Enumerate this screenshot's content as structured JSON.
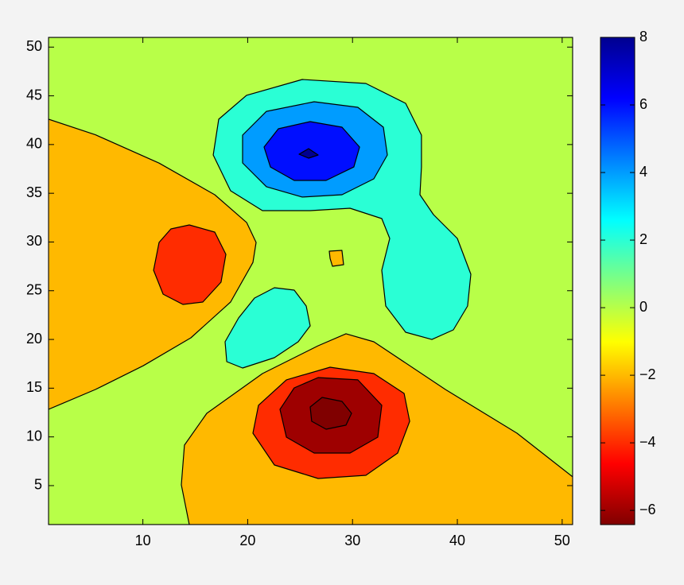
{
  "chart_data": {
    "type": "contourf",
    "xlim": [
      1,
      51
    ],
    "ylim": [
      1,
      51
    ],
    "xticks": [
      10,
      20,
      30,
      40,
      50
    ],
    "yticks": [
      5,
      10,
      15,
      20,
      25,
      30,
      35,
      40,
      45,
      50
    ],
    "colormap": [
      "#00008f",
      "#0000ff",
      "#0080ff",
      "#00ffff",
      "#80ff80",
      "#ffff00",
      "#ff8000",
      "#ff0000",
      "#800000"
    ],
    "clim": [
      -6.42,
      8
    ],
    "cticks": [
      {
        "value": -6,
        "label": "−6"
      },
      {
        "value": -4,
        "label": "−4"
      },
      {
        "value": -2,
        "label": "−2"
      },
      0,
      2,
      4,
      6,
      8
    ],
    "regions": [
      {
        "level": 0,
        "x": [
          1,
          51,
          51,
          1
        ],
        "y": [
          1,
          1,
          51,
          51
        ]
      },
      {
        "level": -2,
        "x": [
          1,
          5.48,
          11.55,
          16.86,
          19.9,
          20.8,
          20.5,
          18.37,
          14.58,
          10.03,
          5.48,
          1
        ],
        "y": [
          42.6,
          41.0,
          38.1,
          34.85,
          32.0,
          29.96,
          27.9,
          23.84,
          20.17,
          17.3,
          14.87,
          12.83
        ]
      },
      {
        "level": -4,
        "x": [
          14.43,
          16.86,
          17.92,
          17.46,
          15.72,
          13.82,
          11.93,
          11.02,
          11.55,
          12.68
        ],
        "y": [
          31.75,
          31.02,
          28.73,
          25.88,
          23.84,
          23.59,
          24.65,
          27.1,
          29.96,
          31.34
        ]
      },
      {
        "level": -2,
        "x": [
          14.43,
          13.67,
          13.97,
          16.1,
          21.41,
          26.72,
          29.38,
          32.03,
          38.86,
          45.69,
          51,
          51
        ],
        "y": [
          1,
          5.08,
          9.16,
          12.42,
          16.5,
          19.35,
          20.58,
          19.76,
          14.87,
          10.38,
          5.9,
          1
        ]
      },
      {
        "level": -4,
        "x": [
          27.86,
          32.03,
          34.92,
          35.45,
          34.31,
          31.27,
          26.72,
          22.55,
          20.5,
          21.03,
          23.69
        ],
        "y": [
          17.15,
          16.5,
          14.46,
          11.6,
          8.34,
          6.06,
          5.73,
          7.12,
          10.38,
          13.24,
          15.85
        ]
      },
      {
        "level": -6,
        "x": [
          26.72,
          30.51,
          32.79,
          32.41,
          29.76,
          26.34,
          23.69,
          23.08,
          24.44
        ],
        "y": [
          16.09,
          15.85,
          13.24,
          9.97,
          8.34,
          8.34,
          9.97,
          12.83,
          15.03
        ]
      },
      {
        "level": -6.42,
        "x": [
          27.1,
          29.0,
          29.91,
          29.38,
          27.48,
          26.11,
          25.96
        ],
        "y": [
          14.05,
          13.64,
          12.42,
          11.2,
          10.79,
          11.6,
          13.07
        ]
      },
      {
        "level": -2,
        "x": [
          27.78,
          28.99,
          29.15,
          28.09,
          27.86
        ],
        "y": [
          29.06,
          29.14,
          27.67,
          27.51,
          28.32
        ]
      },
      {
        "level": 2,
        "x": [
          22.55,
          24.44,
          25.58,
          25.96,
          24.82,
          22.55,
          19.51,
          18.0,
          17.84,
          19.13,
          20.65
        ],
        "y": [
          25.31,
          25.06,
          23.43,
          21.39,
          19.76,
          18.13,
          17.07,
          17.72,
          19.76,
          22.21,
          24.25
        ]
      },
      {
        "level": 2,
        "x": [
          25.2,
          31.27,
          35.07,
          36.58,
          36.58,
          36.43,
          37.72,
          40.0,
          41.29,
          40.98,
          39.62,
          37.57,
          35.07,
          33.17,
          32.79,
          33.55,
          32.79,
          29.76,
          25.96,
          21.41,
          18.37,
          16.71,
          17.24,
          19.89
        ],
        "y": [
          46.68,
          46.27,
          44.23,
          40.97,
          37.7,
          34.85,
          32.81,
          30.36,
          26.69,
          23.43,
          20.98,
          20.0,
          20.74,
          23.43,
          27.1,
          30.36,
          32.4,
          33.46,
          33.22,
          33.22,
          35.26,
          38.93,
          42.6,
          45.05
        ]
      },
      {
        "level": 4,
        "x": [
          26.34,
          30.51,
          32.94,
          33.32,
          32.03,
          29.0,
          25.2,
          21.79,
          19.51,
          19.51,
          21.79
        ],
        "y": [
          44.39,
          43.82,
          41.78,
          38.93,
          36.48,
          34.85,
          34.61,
          35.67,
          38.11,
          40.97,
          43.41
        ]
      },
      {
        "level": 6,
        "x": [
          25.96,
          29.0,
          30.67,
          30.13,
          27.48,
          24.44,
          22.17,
          21.56,
          22.93
        ],
        "y": [
          42.35,
          41.78,
          39.74,
          37.7,
          36.32,
          36.32,
          37.7,
          39.74,
          41.62
        ]
      },
      {
        "level": 8,
        "x": [
          25.81,
          26.72,
          25.81,
          24.9
        ],
        "y": [
          39.58,
          38.93,
          38.6,
          39.01
        ]
      }
    ]
  }
}
